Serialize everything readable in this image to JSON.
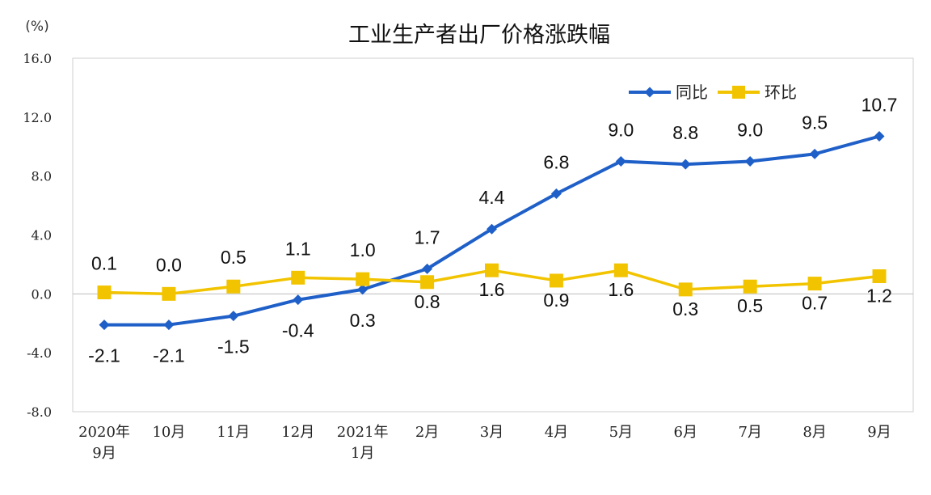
{
  "chart_data": {
    "type": "line",
    "title": "工业生产者出厂价格涨跌幅",
    "unit": "(%)",
    "ylim": [
      -8,
      16
    ],
    "yticks": [
      "16.0",
      "12.0",
      "8.0",
      "4.0",
      "0.0",
      "-4.0",
      "-8.0"
    ],
    "ytick_values": [
      16,
      12,
      8,
      4,
      0,
      -4,
      -8
    ],
    "categories": [
      [
        "2020年",
        "9月"
      ],
      [
        "10月"
      ],
      [
        "11月"
      ],
      [
        "12月"
      ],
      [
        "2021年",
        "1月"
      ],
      [
        "2月"
      ],
      [
        "3月"
      ],
      [
        "4月"
      ],
      [
        "5月"
      ],
      [
        "6月"
      ],
      [
        "7月"
      ],
      [
        "8月"
      ],
      [
        "9月"
      ]
    ],
    "series": [
      {
        "name": "同比",
        "color": "#1f5fc8",
        "marker": "diamond",
        "values": [
          -2.1,
          -2.1,
          -1.5,
          -0.4,
          0.3,
          1.7,
          4.4,
          6.8,
          9.0,
          8.8,
          9.0,
          9.5,
          10.7
        ],
        "labels": [
          "-2.1",
          "-2.1",
          "-1.5",
          "-0.4",
          "0.3",
          "1.7",
          "4.4",
          "6.8",
          "9.0",
          "8.8",
          "9.0",
          "9.5",
          "10.7"
        ],
        "label_pos": [
          "below",
          "below",
          "below",
          "below",
          "below",
          "above",
          "above",
          "above",
          "above",
          "above",
          "above",
          "above",
          "above"
        ]
      },
      {
        "name": "环比",
        "color": "#f2c400",
        "marker": "square",
        "values": [
          0.1,
          0.0,
          0.5,
          1.1,
          1.0,
          0.8,
          1.6,
          0.9,
          1.6,
          0.3,
          0.5,
          0.7,
          1.2
        ],
        "labels": [
          "0.1",
          "0.0",
          "0.5",
          "1.1",
          "1.0",
          "0.8",
          "1.6",
          "0.9",
          "1.6",
          "0.3",
          "0.5",
          "0.7",
          "1.2"
        ],
        "label_pos": [
          "above",
          "above",
          "above",
          "above",
          "above",
          "below",
          "below",
          "below",
          "below",
          "below",
          "below",
          "below",
          "below"
        ]
      }
    ],
    "legend_placement": "top-right",
    "grid": false
  }
}
